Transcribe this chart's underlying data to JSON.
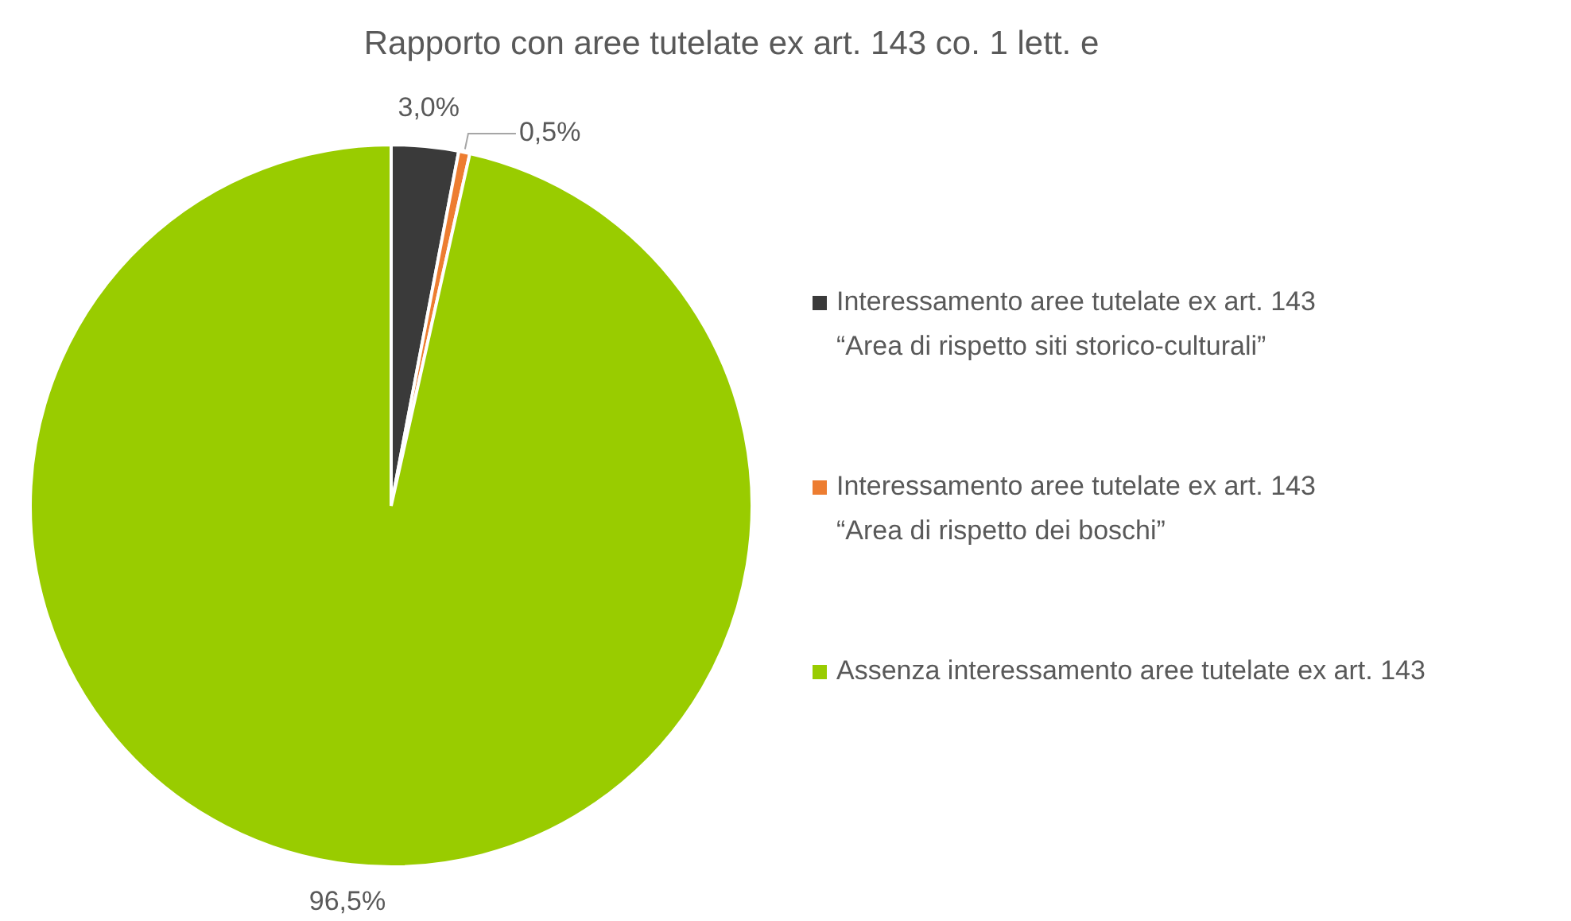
{
  "chart_data": {
    "type": "pie",
    "title": "Rapporto con aree tutelate ex art. 143 co. 1 lett. e",
    "categories": [
      "Interessamento aree tutelate ex art. 143\n“Area di rispetto siti storico-culturali”",
      "Interessamento aree tutelate ex art. 143\n“Area di rispetto dei boschi”",
      "Assenza interessamento aree tutelate ex art. 143"
    ],
    "values": [
      3.0,
      0.5,
      96.5
    ],
    "colors": [
      "#3a3a3a",
      "#ed7d31",
      "#99cc00"
    ],
    "value_labels": [
      "3,0%",
      "0,5%",
      "96,5%"
    ],
    "legend": "right"
  }
}
